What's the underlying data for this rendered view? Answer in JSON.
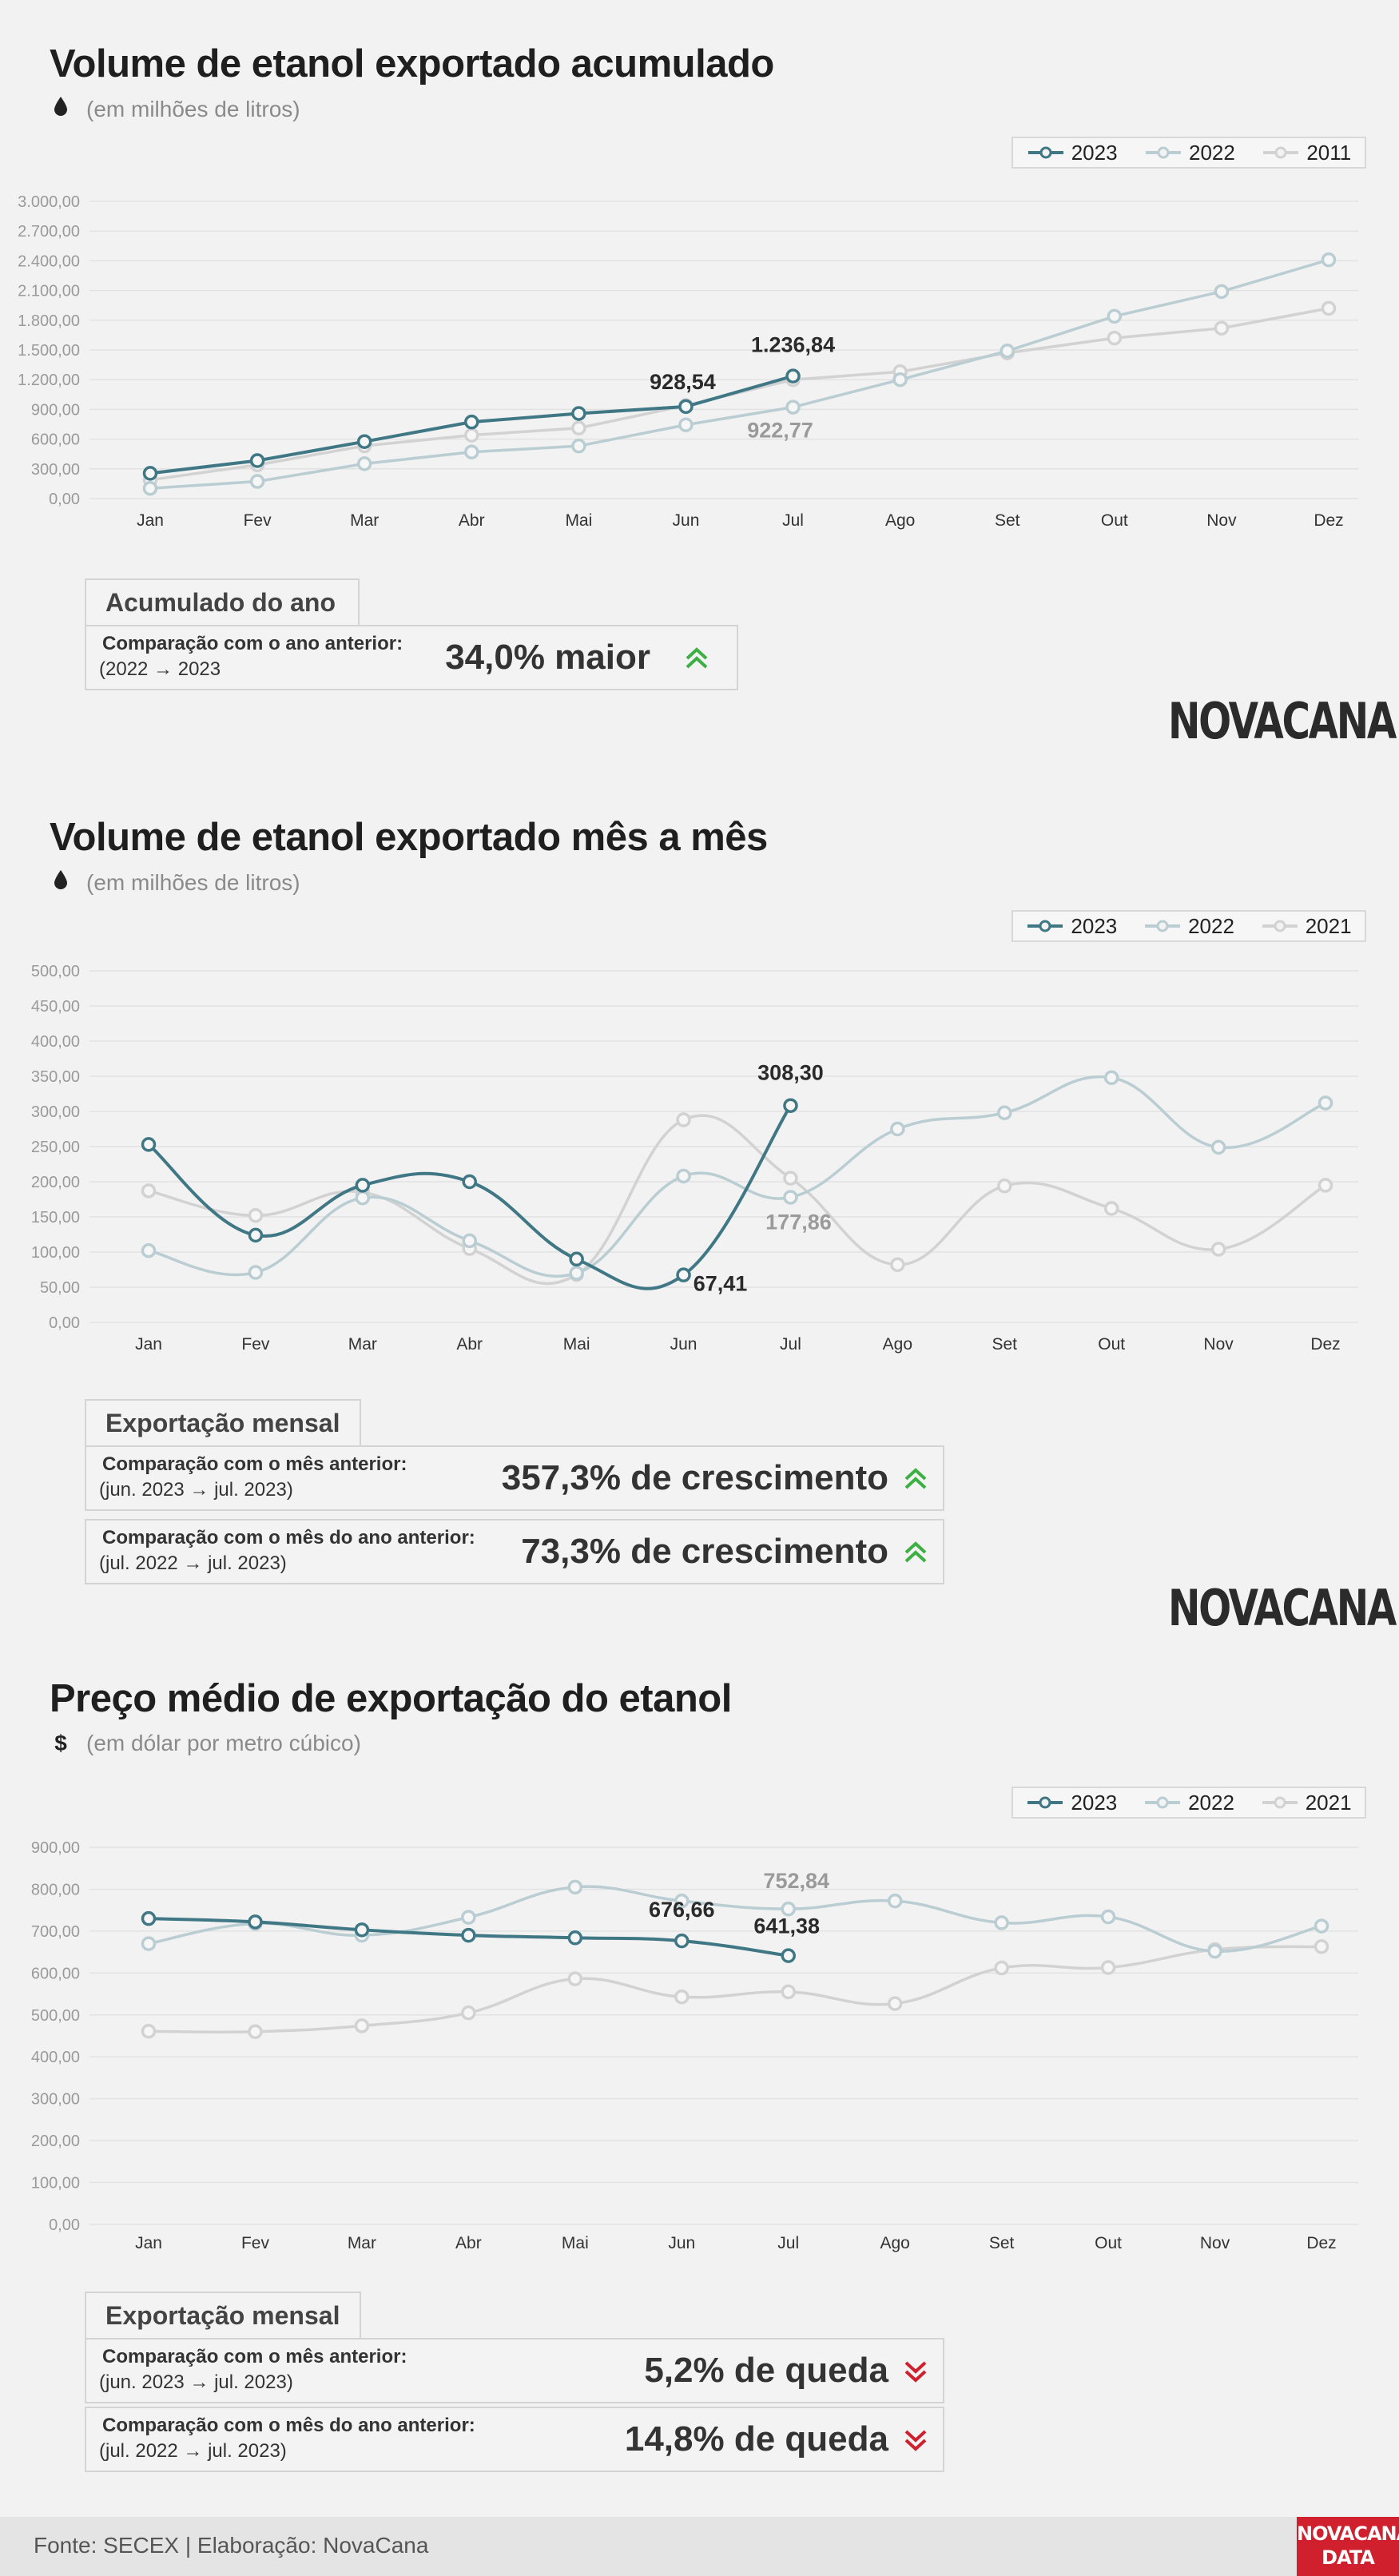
{
  "chart_data": [
    {
      "type": "line",
      "title": "Volume de etanol exportado acumulado",
      "subtitle": "(em milhões de litros)",
      "subtitle_icon": "drop-icon",
      "categories": [
        "Jan",
        "Fev",
        "Mar",
        "Abr",
        "Mai",
        "Jun",
        "Jul",
        "Ago",
        "Set",
        "Out",
        "Nov",
        "Dez"
      ],
      "ylim": [
        0,
        3000
      ],
      "yticks": [
        "0,00",
        "300,00",
        "600,00",
        "900,00",
        "1.200,00",
        "1.500,00",
        "1.800,00",
        "2.100,00",
        "2.400,00",
        "2.700,00",
        "3.000,00"
      ],
      "series": [
        {
          "name": "2023",
          "color": "#3f7785",
          "values": [
            255,
            383,
            575,
            773,
            859,
            928.54,
            1236.84,
            null,
            null,
            null,
            null,
            null
          ]
        },
        {
          "name": "2022",
          "color": "#b9cdd2",
          "values": [
            103,
            173,
            352,
            470,
            531,
            744,
            922.77,
            1200,
            1490,
            1840,
            2090,
            2410
          ]
        },
        {
          "name": "2011",
          "color": "#d2d2d2",
          "values": [
            188,
            340,
            532,
            640,
            712,
            940,
            1200,
            1280,
            1470,
            1620,
            1720,
            1920
          ]
        }
      ],
      "data_labels": [
        {
          "text": "928,54",
          "series": 0,
          "index": 5
        },
        {
          "text": "1.236,84",
          "series": 0,
          "index": 6
        },
        {
          "text": "922,77",
          "series": 1,
          "index": 6
        }
      ],
      "legend_position": "top-right",
      "grid": true
    },
    {
      "type": "line",
      "title": "Volume de etanol exportado mês a mês",
      "subtitle": "(em milhões de litros)",
      "subtitle_icon": "drop-icon",
      "categories": [
        "Jan",
        "Fev",
        "Mar",
        "Abr",
        "Mai",
        "Jun",
        "Jul",
        "Ago",
        "Set",
        "Out",
        "Nov",
        "Dez"
      ],
      "ylim": [
        0,
        500
      ],
      "yticks": [
        "0,00",
        "50,00",
        "100,00",
        "150,00",
        "200,00",
        "250,00",
        "300,00",
        "350,00",
        "400,00",
        "450,00",
        "500,00"
      ],
      "series": [
        {
          "name": "2023",
          "color": "#3f7785",
          "values": [
            253,
            124,
            195,
            200,
            90,
            67.41,
            308.3,
            null,
            null,
            null,
            null,
            null
          ]
        },
        {
          "name": "2022",
          "color": "#b9cdd2",
          "values": [
            102,
            71,
            177,
            116,
            70,
            208,
            177.86,
            275,
            298,
            348,
            249,
            312
          ]
        },
        {
          "name": "2021",
          "color": "#d2d2d2",
          "values": [
            187,
            152,
            185,
            105,
            68,
            288,
            205,
            82,
            194,
            162,
            104,
            195
          ]
        }
      ],
      "data_labels": [
        {
          "text": "308,30",
          "series": 0,
          "index": 6
        },
        {
          "text": "67,41",
          "series": 0,
          "index": 5
        },
        {
          "text": "177,86",
          "series": 1,
          "index": 6
        }
      ],
      "legend_position": "top-right",
      "grid": true
    },
    {
      "type": "line",
      "title": "Preço médio de exportação do etanol",
      "subtitle": "(em dólar por metro cúbico)",
      "subtitle_icon": "dollar-icon",
      "categories": [
        "Jan",
        "Fev",
        "Mar",
        "Abr",
        "Mai",
        "Jun",
        "Jul",
        "Ago",
        "Set",
        "Out",
        "Nov",
        "Dez"
      ],
      "ylim": [
        0,
        900
      ],
      "yticks": [
        "0,00",
        "100,00",
        "200,00",
        "300,00",
        "400,00",
        "500,00",
        "600,00",
        "700,00",
        "800,00",
        "900,00"
      ],
      "series": [
        {
          "name": "2023",
          "color": "#3f7785",
          "values": [
            730,
            722,
            703,
            690,
            684,
            676.66,
            641.38,
            null,
            null,
            null,
            null,
            null
          ]
        },
        {
          "name": "2022",
          "color": "#b9cdd2",
          "values": [
            670,
            718,
            690,
            733,
            805,
            772,
            752.84,
            772,
            720,
            734,
            652,
            712
          ]
        },
        {
          "name": "2021",
          "color": "#d2d2d2",
          "values": [
            461,
            460,
            474,
            505,
            586,
            543,
            555,
            527,
            612,
            613,
            656,
            663
          ]
        }
      ],
      "data_labels": [
        {
          "text": "676,66",
          "series": 0,
          "index": 5
        },
        {
          "text": "641,38",
          "series": 0,
          "index": 6
        },
        {
          "text": "752,84",
          "series": 1,
          "index": 6
        }
      ],
      "legend_position": "top-right",
      "grid": true
    }
  ],
  "box1": {
    "heading": "Acumulado do ano",
    "rows": [
      {
        "label": "Comparação com o ano anterior:",
        "period": "(2022 → 2023",
        "value": "34,0% maior",
        "trend": "up"
      }
    ]
  },
  "box2": {
    "heading": "Exportação mensal",
    "rows": [
      {
        "label": "Comparação com o mês anterior:",
        "period": "(jun. 2023  →  jul. 2023)",
        "value": "357,3% de crescimento",
        "trend": "up"
      },
      {
        "label": "Comparação com o mês do ano anterior:",
        "period": "(jul. 2022  →  jul. 2023)",
        "value": "73,3% de crescimento",
        "trend": "up"
      }
    ]
  },
  "box3": {
    "heading": "Exportação mensal",
    "rows": [
      {
        "label": "Comparação com o mês anterior:",
        "period": "(jun. 2023  →  jul. 2023)",
        "value": "5,2% de queda",
        "trend": "down"
      },
      {
        "label": "Comparação com o mês do ano anterior:",
        "period": "(jul. 2022  →  jul. 2023)",
        "value": "14,8% de queda",
        "trend": "down"
      }
    ]
  },
  "logo_text": "NOVACANA",
  "footer": {
    "source": "Fonte: SECEX | Elaboração: NovaCana",
    "badge_line1": "NOVACANA",
    "badge_line2": "DATA"
  },
  "colors": {
    "up": "#3cb043",
    "down": "#d0202e",
    "accent": "#3f7785"
  }
}
